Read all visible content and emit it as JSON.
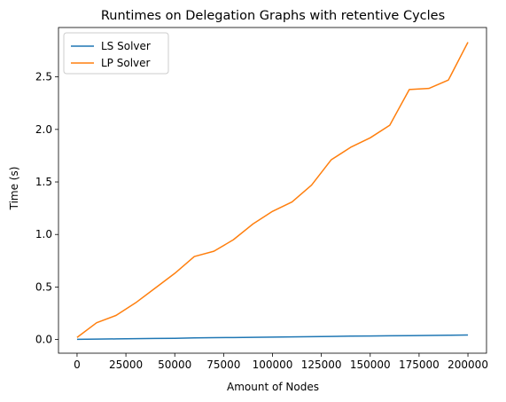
{
  "chart_data": {
    "type": "line",
    "title": "Runtimes on Delegation Graphs with retentive Cycles",
    "xlabel": "Amount of Nodes",
    "ylabel": "Time (s)",
    "xlim": [
      -9500,
      209500
    ],
    "ylim": [
      -0.13,
      2.97
    ],
    "xticks": [
      0,
      25000,
      50000,
      75000,
      100000,
      125000,
      150000,
      175000,
      200000
    ],
    "yticks": [
      0.0,
      0.5,
      1.0,
      1.5,
      2.0,
      2.5
    ],
    "ytick_labels": [
      "0.0",
      "0.5",
      "1.0",
      "1.5",
      "2.0",
      "2.5"
    ],
    "legend_position": "top-left",
    "grid": false,
    "x": [
      0,
      10000,
      20000,
      30000,
      40000,
      50000,
      60000,
      70000,
      80000,
      90000,
      100000,
      110000,
      120000,
      130000,
      140000,
      150000,
      160000,
      170000,
      180000,
      190000,
      200000
    ],
    "series": [
      {
        "name": "LS Solver",
        "color": "#1f77b4",
        "values": [
          0.002,
          0.004,
          0.006,
          0.008,
          0.01,
          0.012,
          0.016,
          0.018,
          0.019,
          0.021,
          0.023,
          0.025,
          0.027,
          0.029,
          0.033,
          0.034,
          0.036,
          0.037,
          0.039,
          0.041,
          0.043
        ]
      },
      {
        "name": "LP Solver",
        "color": "#ff7f0e",
        "values": [
          0.02,
          0.16,
          0.23,
          0.35,
          0.49,
          0.63,
          0.79,
          0.84,
          0.95,
          1.1,
          1.22,
          1.31,
          1.47,
          1.71,
          1.83,
          1.92,
          2.04,
          2.38,
          2.39,
          2.47,
          2.83
        ]
      }
    ]
  }
}
